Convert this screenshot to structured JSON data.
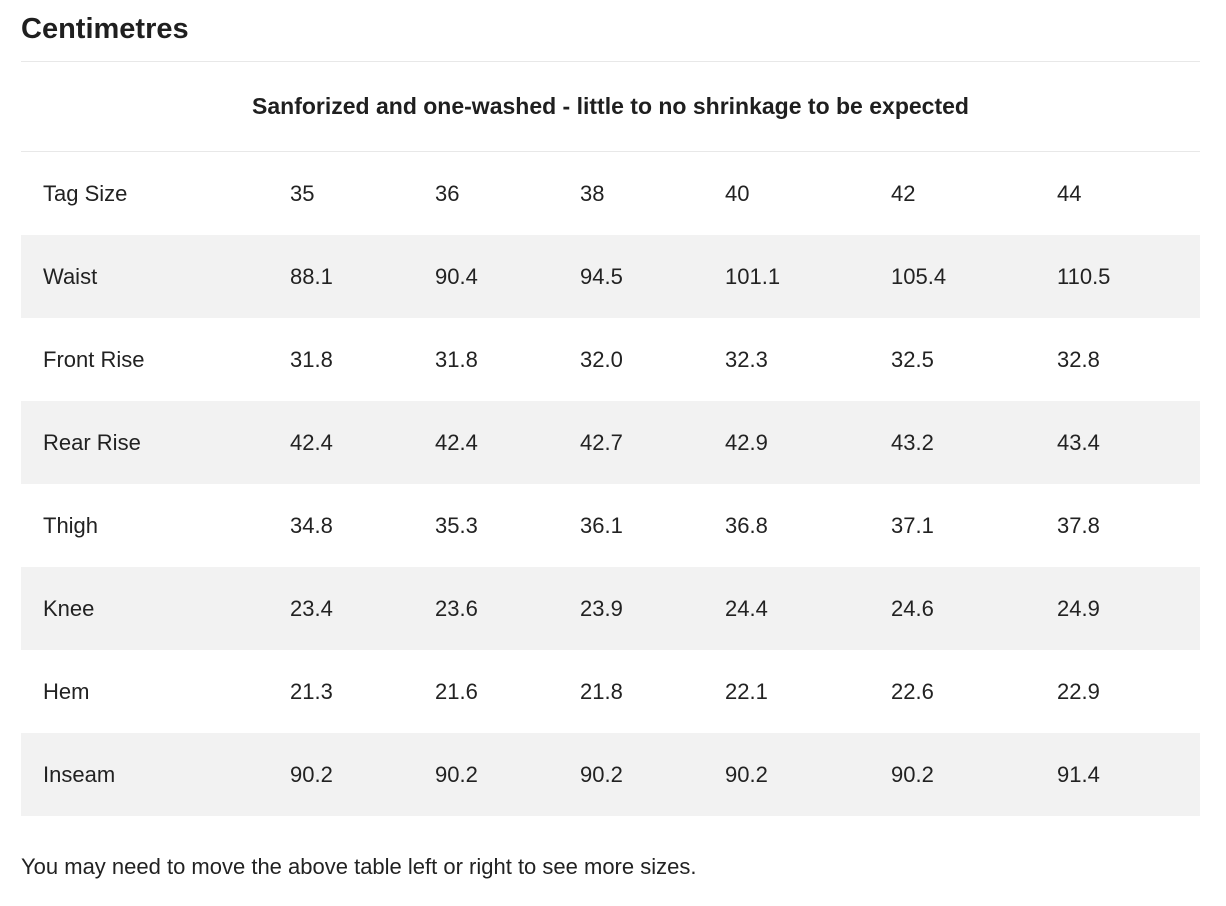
{
  "heading": "Centimetres",
  "table": {
    "caption": "Sanforized and one-washed - little to no shrinkage to be expected",
    "rows": [
      {
        "label": "Tag Size",
        "values": [
          "35",
          "36",
          "38",
          "40",
          "42",
          "44"
        ]
      },
      {
        "label": "Waist",
        "values": [
          "88.1",
          "90.4",
          "94.5",
          "101.1",
          "105.4",
          "110.5"
        ]
      },
      {
        "label": "Front Rise",
        "values": [
          "31.8",
          "31.8",
          "32.0",
          "32.3",
          "32.5",
          "32.8"
        ]
      },
      {
        "label": "Rear Rise",
        "values": [
          "42.4",
          "42.4",
          "42.7",
          "42.9",
          "43.2",
          "43.4"
        ]
      },
      {
        "label": "Thigh",
        "values": [
          "34.8",
          "35.3",
          "36.1",
          "36.8",
          "37.1",
          "37.8"
        ]
      },
      {
        "label": "Knee",
        "values": [
          "23.4",
          "23.6",
          "23.9",
          "24.4",
          "24.6",
          "24.9"
        ]
      },
      {
        "label": "Hem",
        "values": [
          "21.3",
          "21.6",
          "21.8",
          "22.1",
          "22.6",
          "22.9"
        ]
      },
      {
        "label": "Inseam",
        "values": [
          "90.2",
          "90.2",
          "90.2",
          "90.2",
          "90.2",
          "91.4"
        ]
      }
    ]
  },
  "note": "You may need to move the above table left or right to see more sizes.",
  "colors": {
    "stripe": "#f2f2f2",
    "text": "#222222",
    "divider": "#e8e8e8"
  }
}
